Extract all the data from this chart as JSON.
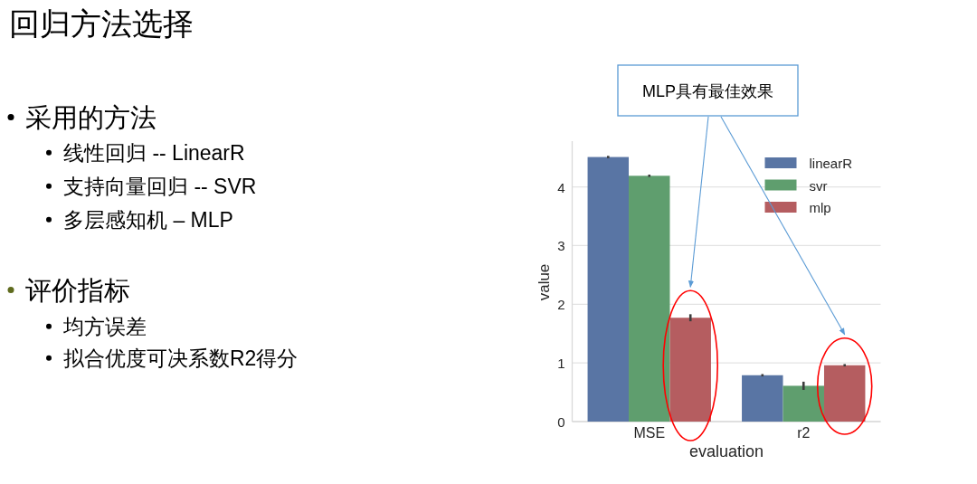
{
  "chart_data": {
    "type": "bar",
    "title": "回归方法选择",
    "xlabel": "evaluation",
    "ylabel": "value",
    "categories": [
      "MSE",
      "r2"
    ],
    "series": [
      {
        "name": "linearR",
        "color": "#5975a4",
        "values": [
          4.51,
          0.79
        ],
        "errors": [
          0.02,
          0.02
        ]
      },
      {
        "name": "svr",
        "color": "#5f9e6e",
        "values": [
          4.19,
          0.61
        ],
        "errors": [
          0.02,
          0.07
        ]
      },
      {
        "name": "mlp",
        "color": "#b55d60",
        "values": [
          1.77,
          0.96
        ],
        "errors": [
          0.06,
          0.02
        ]
      }
    ],
    "ylim": [
      0,
      4.75
    ],
    "yticks": [
      0,
      1,
      2,
      3,
      4
    ],
    "grid": "y",
    "legend": "top right",
    "annotations": [
      "采用的方法",
      "线性回归 -- LinearR",
      "支持向量回归 -- SVR",
      "多层感知机 – MLP",
      "评价指标",
      "均方误差",
      "拟合优度可决系数R2得分",
      "MLP具有最佳效果"
    ]
  }
}
